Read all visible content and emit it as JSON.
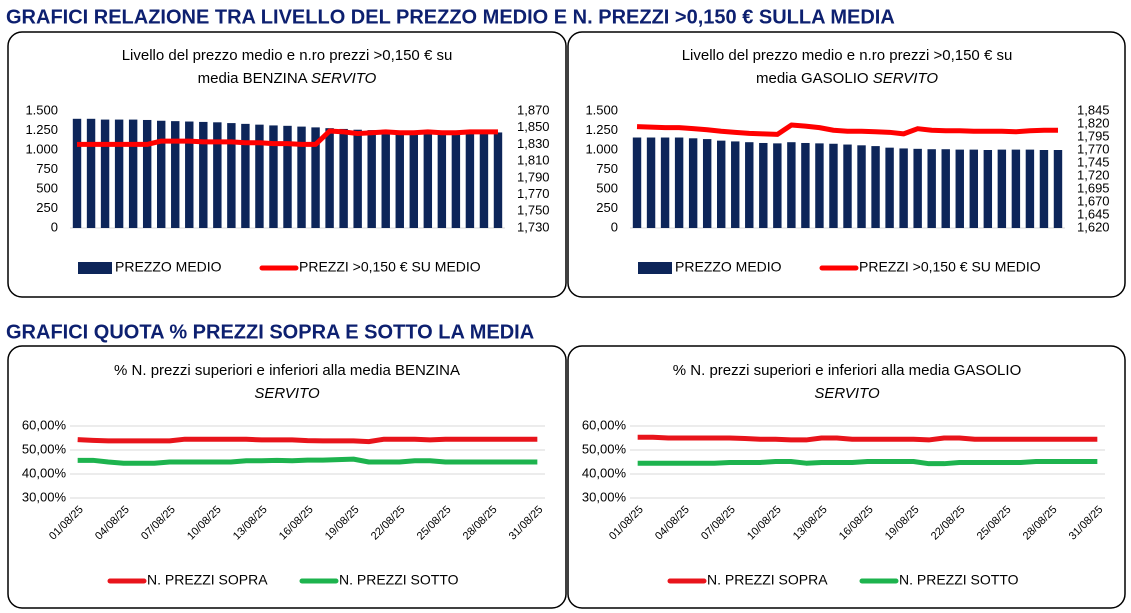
{
  "headings": [
    "GRAFICI RELAZIONE TRA LIVELLO DEL PREZZO MEDIO E N. PREZZI >0,150 € SULLA MEDIA",
    "GRAFICI QUOTA % PREZZI SOPRA E SOTTO LA MEDIA"
  ],
  "chart_data": [
    {
      "type": "bar",
      "title": [
        "Livello del prezzo medio e n.ro prezzi >0,150 € su",
        "media BENZINA"
      ],
      "title_italic": "SERVITO",
      "ylim": [
        0,
        1500
      ],
      "yticks": [
        0,
        250,
        500,
        750,
        {
          "value": 1000,
          "label": "1.000"
        },
        {
          "value": 1250,
          "label": "1.250"
        },
        {
          "value": 1500,
          "label": "1.500"
        }
      ],
      "y2lim": [
        1.73,
        1.87
      ],
      "y2ticks": [
        {
          "value": 1.73,
          "label": "1,730"
        },
        {
          "value": 1.75,
          "label": "1,750"
        },
        {
          "value": 1.77,
          "label": "1,770"
        },
        {
          "value": 1.79,
          "label": "1,790"
        },
        {
          "value": 1.81,
          "label": "1,810"
        },
        {
          "value": 1.83,
          "label": "1,830"
        },
        {
          "value": 1.85,
          "label": "1,850"
        },
        {
          "value": 1.87,
          "label": "1,870"
        }
      ],
      "series": [
        {
          "name": "PREZZO MEDIO",
          "type": "bar",
          "color": "#0d2559",
          "values": [
            1400,
            1400,
            1390,
            1390,
            1390,
            1385,
            1375,
            1370,
            1365,
            1360,
            1355,
            1345,
            1335,
            1325,
            1315,
            1310,
            1300,
            1290,
            1280,
            1270,
            1260,
            1255,
            1250,
            1245,
            1240,
            1238,
            1235,
            1232,
            1230,
            1228,
            1225
          ]
        },
        {
          "name": "PREZZI >0,150 € SU MEDIO",
          "type": "line",
          "axis": "y2",
          "color": "#ff0000",
          "values": [
            1.83,
            1.83,
            1.83,
            1.83,
            1.83,
            1.83,
            1.834,
            1.834,
            1.834,
            1.833,
            1.833,
            1.833,
            1.832,
            1.832,
            1.831,
            1.831,
            1.83,
            1.83,
            1.846,
            1.845,
            1.843,
            1.844,
            1.845,
            1.844,
            1.844,
            1.845,
            1.844,
            1.844,
            1.845,
            1.845,
            1.845
          ]
        }
      ]
    },
    {
      "type": "bar",
      "title": [
        "Livello del prezzo medio e n.ro prezzi >0,150 € su",
        "media GASOLIO"
      ],
      "title_italic": "SERVITO",
      "ylim": [
        0,
        1500
      ],
      "yticks": [
        0,
        250,
        500,
        750,
        {
          "value": 1000,
          "label": "1.000"
        },
        {
          "value": 1250,
          "label": "1.250"
        },
        {
          "value": 1500,
          "label": "1.500"
        }
      ],
      "y2lim": [
        1.62,
        1.845
      ],
      "y2ticks": [
        {
          "value": 1.62,
          "label": "1,620"
        },
        {
          "value": 1.645,
          "label": "1,645"
        },
        {
          "value": 1.67,
          "label": "1,670"
        },
        {
          "value": 1.695,
          "label": "1,695"
        },
        {
          "value": 1.72,
          "label": "1,720"
        },
        {
          "value": 1.745,
          "label": "1,745"
        },
        {
          "value": 1.77,
          "label": "1,770"
        },
        {
          "value": 1.795,
          "label": "1,795"
        },
        {
          "value": 1.82,
          "label": "1,820"
        },
        {
          "value": 1.845,
          "label": "1,845"
        }
      ],
      "series": [
        {
          "name": "PREZZO MEDIO",
          "type": "bar",
          "color": "#0d2559",
          "values": [
            1160,
            1160,
            1160,
            1160,
            1150,
            1140,
            1120,
            1110,
            1100,
            1090,
            1085,
            1100,
            1090,
            1085,
            1080,
            1070,
            1060,
            1050,
            1030,
            1020,
            1015,
            1010,
            1010,
            1005,
            1005,
            1000,
            1005,
            1005,
            1005,
            1000,
            1000
          ]
        },
        {
          "name": "PREZZI >0,150 € SU MEDIO",
          "type": "line",
          "axis": "y2",
          "color": "#ff0000",
          "values": [
            1.815,
            1.814,
            1.813,
            1.813,
            1.811,
            1.809,
            1.806,
            1.804,
            1.802,
            1.801,
            1.8,
            1.818,
            1.816,
            1.813,
            1.808,
            1.806,
            1.806,
            1.805,
            1.804,
            1.801,
            1.811,
            1.808,
            1.807,
            1.807,
            1.806,
            1.806,
            1.806,
            1.805,
            1.807,
            1.808,
            1.808
          ]
        }
      ]
    },
    {
      "type": "line",
      "title": [
        "% N. prezzi superiori e inferiori alla media BENZINA"
      ],
      "title_italic": "SERVITO",
      "categories": [
        "01/08/25",
        null,
        null,
        "04/08/25",
        null,
        null,
        "07/08/25",
        null,
        null,
        "10/08/25",
        null,
        null,
        "13/08/25",
        null,
        null,
        "16/08/25",
        null,
        null,
        "19/08/25",
        null,
        null,
        "22/08/25",
        null,
        null,
        "25/08/25",
        null,
        null,
        "28/08/25",
        null,
        null,
        "31/08/25"
      ],
      "ylim": [
        30,
        60
      ],
      "yticks": [
        {
          "value": 30,
          "label": "30,00%"
        },
        {
          "value": 40,
          "label": "40,00%"
        },
        {
          "value": 50,
          "label": "50,00%"
        },
        {
          "value": 60,
          "label": "60,00%"
        }
      ],
      "grid": true,
      "series": [
        {
          "name": "N. PREZZI SOPRA",
          "color": "#e8141b",
          "values": [
            54.3,
            54,
            53.8,
            53.8,
            53.8,
            53.8,
            53.8,
            54.5,
            54.5,
            54.5,
            54.5,
            54.5,
            54.2,
            54.2,
            54.2,
            53.9,
            53.8,
            53.8,
            53.8,
            53.5,
            54.5,
            54.5,
            54.5,
            54.2,
            54.5,
            54.5,
            54.5,
            54.5,
            54.5,
            54.5,
            54.5
          ]
        },
        {
          "name": "N. PREZZI SOTTO",
          "color": "#1db34e",
          "values": [
            45.7,
            45.7,
            45,
            44.5,
            44.5,
            44.5,
            45,
            45,
            45,
            45,
            45,
            45.5,
            45.5,
            45.7,
            45.5,
            45.8,
            45.8,
            46,
            46.2,
            45,
            45,
            45,
            45.5,
            45.5,
            45,
            45,
            45,
            45,
            45,
            45,
            45
          ]
        }
      ]
    },
    {
      "type": "line",
      "title": [
        "% N. prezzi superiori e inferiori alla media GASOLIO"
      ],
      "title_italic": "SERVITO",
      "categories": [
        "01/08/25",
        null,
        null,
        "04/08/25",
        null,
        null,
        "07/08/25",
        null,
        null,
        "10/08/25",
        null,
        null,
        "13/08/25",
        null,
        null,
        "16/08/25",
        null,
        null,
        "19/08/25",
        null,
        null,
        "22/08/25",
        null,
        null,
        "25/08/25",
        null,
        null,
        "28/08/25",
        null,
        null,
        "31/08/25"
      ],
      "ylim": [
        30,
        60
      ],
      "yticks": [
        {
          "value": 30,
          "label": "30,00%"
        },
        {
          "value": 40,
          "label": "40,00%"
        },
        {
          "value": 50,
          "label": "50,00%"
        },
        {
          "value": 60,
          "label": "60,00%"
        }
      ],
      "grid": true,
      "series": [
        {
          "name": "N. PREZZI SOPRA",
          "color": "#e8141b",
          "values": [
            55.3,
            55.3,
            55,
            55,
            55,
            55,
            55,
            54.8,
            54.5,
            54.5,
            54.2,
            54.2,
            55,
            55,
            54.5,
            54.5,
            54.5,
            54.5,
            54.5,
            54.2,
            55,
            55,
            54.5,
            54.5,
            54.5,
            54.5,
            54.5,
            54.5,
            54.5,
            54.5,
            54.5
          ]
        },
        {
          "name": "N. PREZZI SOTTO",
          "color": "#1db34e",
          "values": [
            44.5,
            44.5,
            44.5,
            44.5,
            44.5,
            44.5,
            44.8,
            44.8,
            44.8,
            45.2,
            45.2,
            44.5,
            44.8,
            44.8,
            44.8,
            45.2,
            45.2,
            45.2,
            45.2,
            44.3,
            44.3,
            44.8,
            44.8,
            44.8,
            44.8,
            44.8,
            45.2,
            45.2,
            45.2,
            45.2,
            45.2
          ]
        }
      ]
    }
  ]
}
